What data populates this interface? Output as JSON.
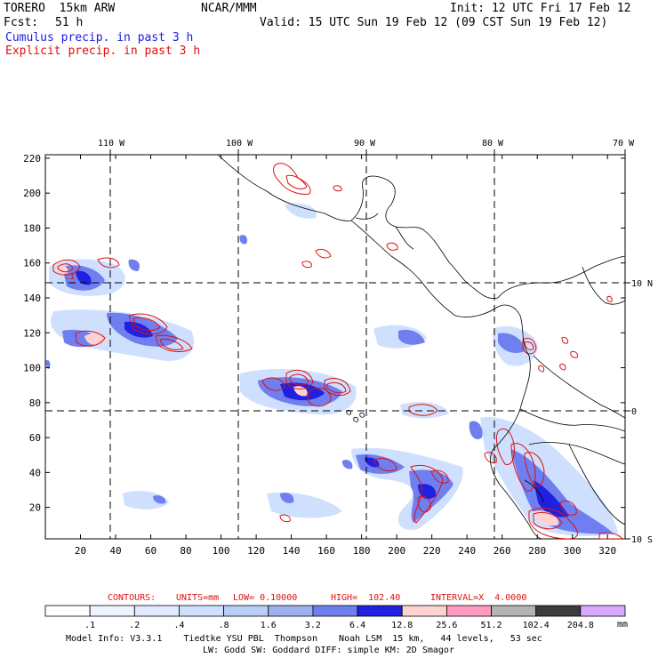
{
  "header": {
    "model": "TORERO  15km ARW",
    "center": "NCAR/MMM",
    "init": "Init: 12 UTC Fri 17 Feb 12",
    "fcst_label": "Fcst:",
    "fcst_value": "51 h",
    "valid": "Valid: 15 UTC Sun 19 Feb 12 (09 CST Sun 19 Feb 12)",
    "field1": "Cumulus precip. in past 3 h",
    "field2": "Explicit precip. in past 3 h"
  },
  "axes": {
    "x_ticks": [
      "20",
      "40",
      "60",
      "80",
      "100",
      "120",
      "140",
      "160",
      "180",
      "200",
      "220",
      "240",
      "260",
      "280",
      "300",
      "320"
    ],
    "y_ticks": [
      "20",
      "40",
      "60",
      "80",
      "100",
      "120",
      "140",
      "160",
      "180",
      "200",
      "220"
    ],
    "lon_labels": [
      "110 W",
      "100 W",
      "90 W",
      "80 W",
      "70 W"
    ],
    "lat_labels": [
      "10 N",
      "0",
      "10 S"
    ]
  },
  "contours": {
    "label": "CONTOURS:",
    "units": "UNITS=mm",
    "low": "LOW= 0.10000",
    "high": "HIGH=  102.40",
    "interval": "INTERVAL=X  4.0000"
  },
  "colorbar": {
    "unit": "mm",
    "labels": [
      ".1",
      ".2",
      ".4",
      ".8",
      "1.6",
      "3.2",
      "6.4",
      "12.8",
      "25.6",
      "51.2",
      "102.4",
      "204.8"
    ],
    "colors": [
      "#ffffff",
      "#eef4ff",
      "#dfeaff",
      "#cfe0ff",
      "#b8cdf7",
      "#9fb0f0",
      "#6f7ff0",
      "#2020e0",
      "#ffd2d2",
      "#ff9ac0",
      "#b4b4b4",
      "#3c3c3c",
      "#d9a8ff"
    ]
  },
  "model_info": {
    "line1": "Model Info: V3.3.1    Tiedtke YSU PBL  Thompson    Noah LSM  15 km,   44 levels,   53 sec",
    "line2": "LW: Godd SW: Goddard DIFF: simple KM: 2D Smagor"
  },
  "map_label": ".1"
}
